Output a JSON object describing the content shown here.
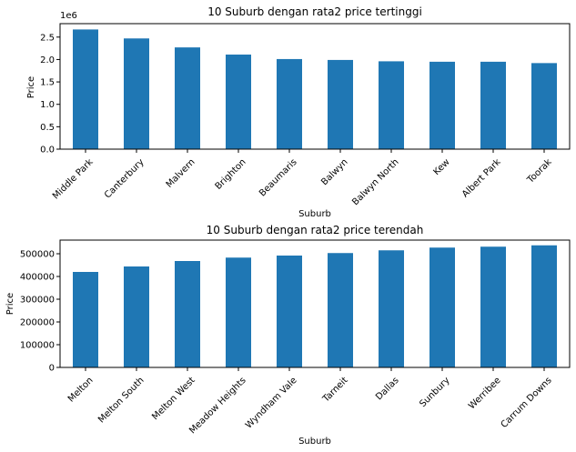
{
  "chart_data": [
    {
      "type": "bar",
      "title": "10 Suburb dengan rata2 price tertinggi",
      "xlabel": "Suburb",
      "ylabel": "Price",
      "y_offset_label": "1e6",
      "ylim": [
        0,
        2.8
      ],
      "yticks": [
        0.0,
        0.5,
        1.0,
        1.5,
        2.0,
        2.5
      ],
      "ytick_labels": [
        "0.0",
        "0.5",
        "1.0",
        "1.5",
        "2.0",
        "2.5"
      ],
      "categories": [
        "Middle Park",
        "Canterbury",
        "Malvern",
        "Brighton",
        "Beaumaris",
        "Balwyn",
        "Balwyn North",
        "Kew",
        "Albert Park",
        "Toorak"
      ],
      "values": [
        2.67,
        2.47,
        2.27,
        2.11,
        2.01,
        1.99,
        1.96,
        1.95,
        1.95,
        1.92
      ],
      "color": "#1f77b4",
      "grid": false
    },
    {
      "type": "bar",
      "title": "10 Suburb dengan rata2 price terendah",
      "xlabel": "Suburb",
      "ylabel": "Price",
      "ylim": [
        0,
        560000
      ],
      "yticks": [
        0,
        100000,
        200000,
        300000,
        400000,
        500000
      ],
      "ytick_labels": [
        "0",
        "100000",
        "200000",
        "300000",
        "400000",
        "500000"
      ],
      "categories": [
        "Melton",
        "Melton South",
        "Melton West",
        "Meadow Heights",
        "Wyndham Vale",
        "Tarneit",
        "Dallas",
        "Sunbury",
        "Werribee",
        "Carrum Downs"
      ],
      "values": [
        420000,
        444000,
        468000,
        483000,
        492000,
        503000,
        515000,
        527000,
        531000,
        537000
      ],
      "color": "#1f77b4",
      "grid": false
    }
  ]
}
